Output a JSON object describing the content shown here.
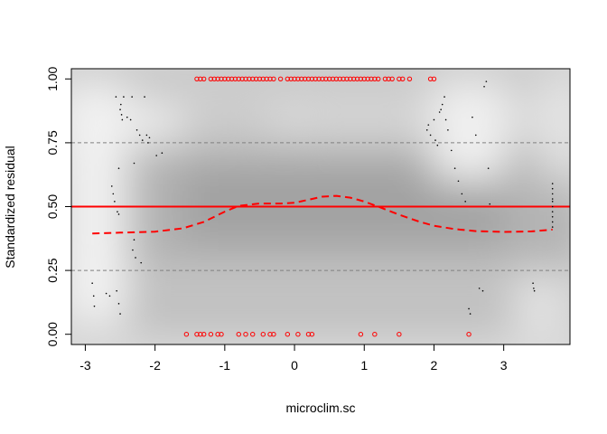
{
  "chart_data": {
    "type": "scatter",
    "xlabel": "microclim.sc",
    "ylabel": "Standardized residual",
    "xlim": [
      -3.2,
      3.95
    ],
    "ylim": [
      -0.04,
      1.04
    ],
    "x_ticks": [
      -3,
      -2,
      -1,
      0,
      1,
      2,
      3
    ],
    "y_ticks": [
      0.0,
      0.25,
      0.5,
      0.75,
      1.0
    ],
    "x_tick_labels": [
      "-3",
      "-2",
      "-1",
      "0",
      "1",
      "2",
      "3"
    ],
    "y_tick_labels": [
      "0.00",
      "0.25",
      "0.50",
      "0.75",
      "1.00"
    ],
    "reference_lines": [
      {
        "y": 0.25,
        "style": "dashed",
        "color": "#808080"
      },
      {
        "y": 0.5,
        "style": "solid",
        "color": "#ff0000"
      },
      {
        "y": 0.75,
        "style": "dashed",
        "color": "#808080"
      }
    ],
    "smooth_curve": {
      "color": "#ff0000",
      "style": "dashed",
      "x": [
        -2.9,
        -2.5,
        -2.0,
        -1.6,
        -1.3,
        -1.0,
        -0.8,
        -0.5,
        -0.2,
        0.0,
        0.2,
        0.4,
        0.6,
        0.8,
        1.0,
        1.2,
        1.5,
        1.8,
        2.0,
        2.3,
        2.6,
        3.0,
        3.4,
        3.7
      ],
      "y": [
        0.395,
        0.398,
        0.402,
        0.415,
        0.44,
        0.48,
        0.503,
        0.512,
        0.512,
        0.515,
        0.527,
        0.539,
        0.542,
        0.535,
        0.52,
        0.5,
        0.468,
        0.44,
        0.425,
        0.412,
        0.404,
        0.401,
        0.403,
        0.41
      ]
    },
    "outliers": {
      "color": "#ff0000",
      "top": {
        "y": 1.0,
        "x": [
          -1.4,
          -1.35,
          -1.3,
          -1.2,
          -1.15,
          -1.1,
          -1.05,
          -1.0,
          -0.95,
          -0.9,
          -0.85,
          -0.8,
          -0.75,
          -0.7,
          -0.65,
          -0.6,
          -0.55,
          -0.5,
          -0.45,
          -0.4,
          -0.35,
          -0.3,
          -0.2,
          -0.1,
          -0.05,
          0.0,
          0.05,
          0.1,
          0.15,
          0.2,
          0.25,
          0.3,
          0.35,
          0.4,
          0.45,
          0.5,
          0.55,
          0.6,
          0.65,
          0.7,
          0.75,
          0.8,
          0.85,
          0.9,
          0.95,
          1.0,
          1.05,
          1.1,
          1.15,
          1.2,
          1.3,
          1.35,
          1.4,
          1.5,
          1.55,
          1.65,
          1.95,
          2.0
        ]
      },
      "bottom": {
        "y": 0.0,
        "x": [
          -1.55,
          -1.4,
          -1.35,
          -1.3,
          -1.2,
          -1.1,
          -1.05,
          -0.8,
          -0.7,
          -0.6,
          -0.45,
          -0.35,
          -0.3,
          -0.1,
          0.05,
          0.2,
          0.25,
          0.95,
          1.15,
          1.5,
          2.5
        ]
      }
    },
    "residual_points": {
      "color": "#000000",
      "points": [
        [
          -2.9,
          0.2
        ],
        [
          -2.88,
          0.15
        ],
        [
          -2.87,
          0.11
        ],
        [
          -2.7,
          0.16
        ],
        [
          -2.65,
          0.15
        ],
        [
          -2.62,
          0.58
        ],
        [
          -2.6,
          0.55
        ],
        [
          -2.58,
          0.52
        ],
        [
          -2.56,
          0.93
        ],
        [
          -2.54,
          0.48
        ],
        [
          -2.52,
          0.47
        ],
        [
          -2.5,
          0.88
        ],
        [
          -2.49,
          0.9
        ],
        [
          -2.48,
          0.86
        ],
        [
          -2.47,
          0.84
        ],
        [
          -2.45,
          0.93
        ],
        [
          -2.4,
          0.85
        ],
        [
          -2.35,
          0.84
        ],
        [
          -2.33,
          0.93
        ],
        [
          -2.3,
          0.37
        ],
        [
          -2.28,
          0.3
        ],
        [
          -2.26,
          0.8
        ],
        [
          -2.22,
          0.78
        ],
        [
          -2.2,
          0.28
        ],
        [
          -2.18,
          0.76
        ],
        [
          -2.15,
          0.93
        ],
        [
          -2.12,
          0.78
        ],
        [
          -2.1,
          0.75
        ],
        [
          -2.08,
          0.77
        ],
        [
          -1.98,
          0.7
        ],
        [
          -1.9,
          0.71
        ],
        [
          -2.55,
          0.17
        ],
        [
          -2.52,
          0.12
        ],
        [
          -2.5,
          0.08
        ],
        [
          -2.52,
          0.65
        ],
        [
          -2.3,
          0.67
        ],
        [
          -2.32,
          0.33
        ],
        [
          1.9,
          0.8
        ],
        [
          1.92,
          0.82
        ],
        [
          1.95,
          0.78
        ],
        [
          2.0,
          0.84
        ],
        [
          2.02,
          0.76
        ],
        [
          2.05,
          0.74
        ],
        [
          2.08,
          0.87
        ],
        [
          2.1,
          0.88
        ],
        [
          2.12,
          0.9
        ],
        [
          2.15,
          0.93
        ],
        [
          2.17,
          0.84
        ],
        [
          2.2,
          0.8
        ],
        [
          2.25,
          0.72
        ],
        [
          2.3,
          0.65
        ],
        [
          2.35,
          0.6
        ],
        [
          2.4,
          0.55
        ],
        [
          2.45,
          0.52
        ],
        [
          2.5,
          0.1
        ],
        [
          2.52,
          0.08
        ],
        [
          2.55,
          0.85
        ],
        [
          2.6,
          0.78
        ],
        [
          2.65,
          0.18
        ],
        [
          2.7,
          0.17
        ],
        [
          2.72,
          0.97
        ],
        [
          2.75,
          0.99
        ],
        [
          2.78,
          0.65
        ],
        [
          2.8,
          0.51
        ],
        [
          3.42,
          0.2
        ],
        [
          3.43,
          0.18
        ],
        [
          3.44,
          0.17
        ],
        [
          3.7,
          0.59
        ],
        [
          3.7,
          0.57
        ],
        [
          3.7,
          0.55
        ],
        [
          3.7,
          0.53
        ],
        [
          3.7,
          0.52
        ],
        [
          3.7,
          0.5
        ],
        [
          3.7,
          0.48
        ],
        [
          3.7,
          0.46
        ],
        [
          3.7,
          0.44
        ],
        [
          3.7,
          0.42
        ]
      ]
    },
    "background": "grayscale density shading of simulated residuals",
    "grid": false,
    "legend": "none"
  }
}
